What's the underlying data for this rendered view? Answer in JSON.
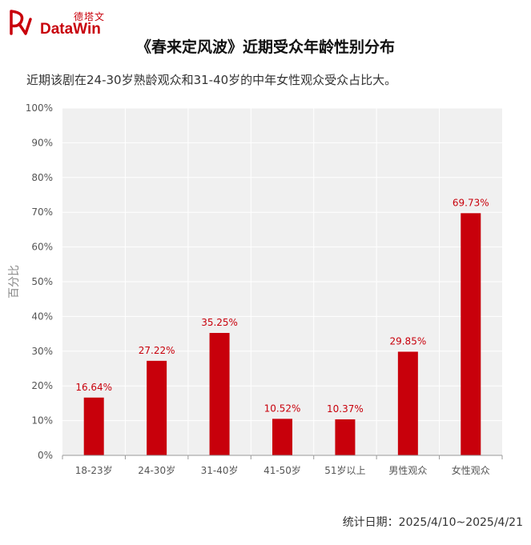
{
  "brand": {
    "name_cn": "德塔文",
    "name_en": "DataWin",
    "color": "#c8000b"
  },
  "title": "《春来定风波》近期受众年龄性别分布",
  "subtitle": "近期该剧在24-30岁熟龄观众和31-40岁的中年女性观众受众占比大。",
  "footer": "统计日期：2025/4/10~2025/4/21",
  "chart_data": {
    "type": "bar",
    "categories": [
      "18-23岁",
      "24-30岁",
      "31-40岁",
      "41-50岁",
      "51岁以上",
      "男性观众",
      "女性观众"
    ],
    "values": [
      16.64,
      27.22,
      35.25,
      10.52,
      10.37,
      29.85,
      69.73
    ],
    "data_labels": [
      "16.64%",
      "27.22%",
      "35.25%",
      "10.52%",
      "10.37%",
      "29.85%",
      "69.73%"
    ],
    "ylabel": "百分比",
    "xlabel": "",
    "ylim": [
      0,
      100
    ],
    "yticks": [
      "0%",
      "10%",
      "20%",
      "30%",
      "40%",
      "50%",
      "60%",
      "70%",
      "80%",
      "90%",
      "100%"
    ],
    "bar_color": "#c8000b",
    "plot_background": "#f0f0f0",
    "grid": true
  }
}
